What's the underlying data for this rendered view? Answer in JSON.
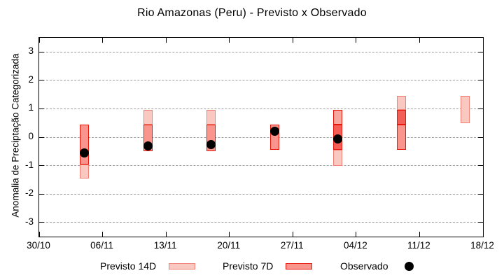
{
  "chart_data": {
    "type": "bar",
    "subtype": "range-interval-forecast",
    "title": "Rio Amazonas (Peru) - Previsto x Observado",
    "ylabel": "Anomalia de Preciptação Categorizada",
    "xlabel": "",
    "ylim": [
      -3.5,
      3.5
    ],
    "y_ticks": [
      3,
      2,
      1,
      0,
      -1,
      -2,
      -3
    ],
    "x_ticks": [
      "30/10",
      "06/11",
      "13/11",
      "20/11",
      "27/11",
      "04/12",
      "11/12",
      "18/12"
    ],
    "x_tick_interval_days": 7,
    "grid": "horizontal-dashed",
    "legend_position": "below-plot",
    "colors": {
      "light": {
        "fill": "#f9c8c0",
        "border": "#f08074",
        "series": "previsto-14d"
      },
      "mid": {
        "fill": "#fa958e",
        "border": "#e8170b",
        "series": "previsto-7d"
      },
      "medium": {
        "fill": "#f6a8a0",
        "border": "#e8170b",
        "series": "previsto-7d-light"
      },
      "dark": {
        "fill": "#f35f57",
        "border": "#e8170b",
        "series": "previsto-overlap"
      },
      "observed": "#000000",
      "grid": "#9e9e9e",
      "axis": "#000000"
    },
    "clusters": [
      {
        "date": "04/11",
        "day": 5,
        "segments": [
          {
            "lo": -1.45,
            "hi": -0.95,
            "tone": "light"
          },
          {
            "lo": -0.95,
            "hi": 0.45,
            "tone": "mid"
          }
        ],
        "observed": -0.55
      },
      {
        "date": "11/11",
        "day": 12,
        "segments": [
          {
            "lo": 0.45,
            "hi": 0.95,
            "tone": "light"
          },
          {
            "lo": -0.5,
            "hi": 0.45,
            "tone": "mid"
          }
        ],
        "observed": -0.3
      },
      {
        "date": "18/11",
        "day": 19,
        "segments": [
          {
            "lo": 0.45,
            "hi": 0.95,
            "tone": "light"
          },
          {
            "lo": -0.5,
            "hi": 0.45,
            "tone": "mid"
          }
        ],
        "observed": -0.25
      },
      {
        "date": "25/11",
        "day": 26,
        "segments": [
          {
            "lo": -0.45,
            "hi": 0.45,
            "tone": "mid"
          }
        ],
        "observed": 0.2
      },
      {
        "date": "02/12",
        "day": 33,
        "segments": [
          {
            "lo": 0.45,
            "hi": 0.95,
            "tone": "medium"
          },
          {
            "lo": -0.45,
            "hi": 0.45,
            "tone": "dark"
          },
          {
            "lo": -1.0,
            "hi": -0.45,
            "tone": "light"
          }
        ],
        "observed": -0.05
      },
      {
        "date": "09/12",
        "day": 40,
        "segments": [
          {
            "lo": 0.95,
            "hi": 1.45,
            "tone": "light"
          },
          {
            "lo": 0.45,
            "hi": 0.95,
            "tone": "dark"
          },
          {
            "lo": -0.45,
            "hi": 0.45,
            "tone": "mid"
          }
        ],
        "observed": null
      },
      {
        "date": "16/12",
        "day": 47,
        "segments": [
          {
            "lo": 0.5,
            "hi": 1.45,
            "tone": "light"
          }
        ],
        "observed": null
      }
    ]
  },
  "legend": {
    "items": [
      {
        "label": "Previsto 14D",
        "swatch": "light"
      },
      {
        "label": "Previsto 7D",
        "swatch": "mid"
      },
      {
        "label": "Observado",
        "swatch": "observed"
      }
    ]
  }
}
